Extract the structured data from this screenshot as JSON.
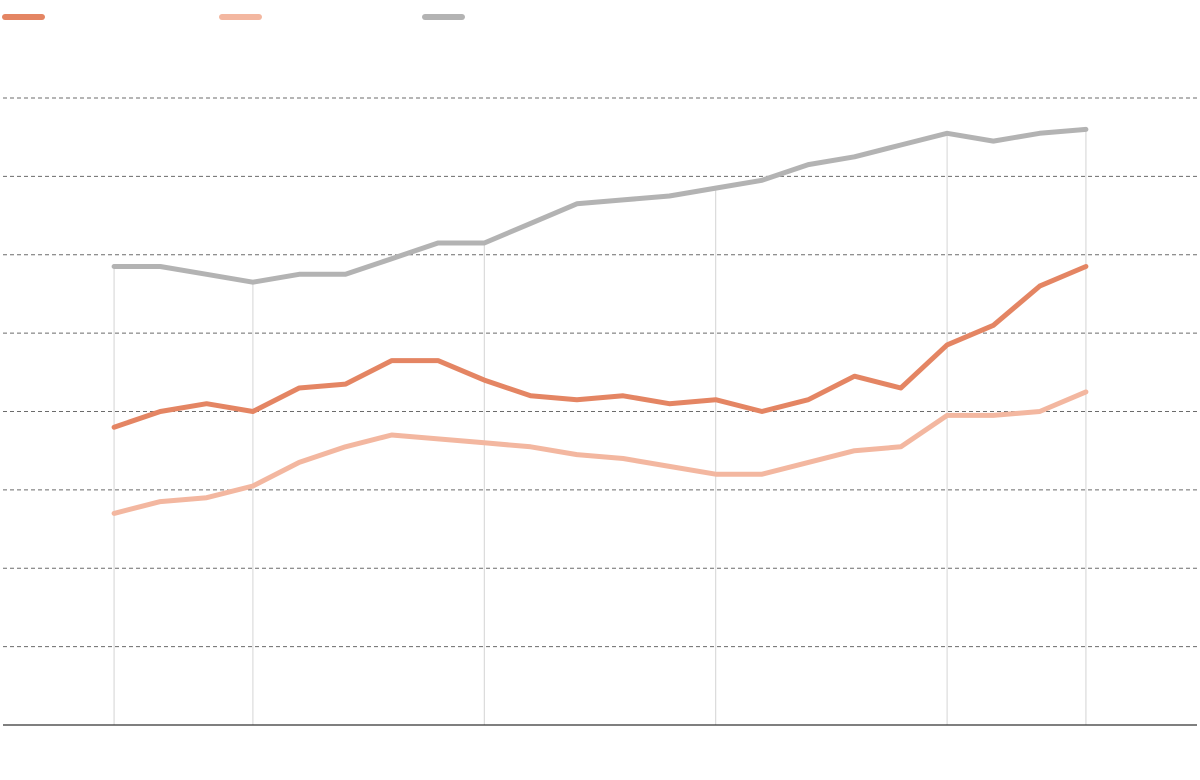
{
  "chart_data": {
    "type": "line",
    "title": "",
    "xlabel": "",
    "ylabel": "",
    "x": [
      1,
      2,
      3,
      4,
      5,
      6,
      7,
      8,
      9,
      10,
      11,
      12,
      13,
      14,
      15,
      16,
      17,
      18,
      19,
      20,
      21,
      22
    ],
    "x_range": [
      -1.4,
      24.4
    ],
    "ylim": [
      0,
      80
    ],
    "y_gridlines": [
      10,
      20,
      30,
      40,
      50,
      60,
      70,
      80
    ],
    "x_gridlines": [
      1,
      4,
      9,
      14,
      19,
      22
    ],
    "grid": true,
    "legend_position": "top-left",
    "series": [
      {
        "name": "",
        "color": "#e48563",
        "values": [
          38,
          40,
          41,
          40,
          43,
          43.5,
          46.5,
          46.5,
          44,
          42,
          41.5,
          42,
          41,
          41.5,
          40,
          41.5,
          44.5,
          43,
          48.5,
          51,
          56,
          58.5
        ]
      },
      {
        "name": "",
        "color": "#f3b7a0",
        "values": [
          27,
          28.5,
          29,
          30.5,
          33.5,
          35.5,
          37,
          36.5,
          36,
          35.5,
          34.5,
          34,
          33,
          32,
          32,
          33.5,
          35,
          35.5,
          39.5,
          39.5,
          40,
          42.5
        ]
      },
      {
        "name": "",
        "color": "#b3b3b3",
        "values": [
          58.5,
          58.5,
          57.5,
          56.5,
          57.5,
          57.5,
          59.5,
          61.5,
          61.5,
          64,
          66.5,
          67,
          67.5,
          68.5,
          69.5,
          71.5,
          72.5,
          74,
          75.5,
          74.5,
          75.5,
          76
        ]
      }
    ]
  }
}
